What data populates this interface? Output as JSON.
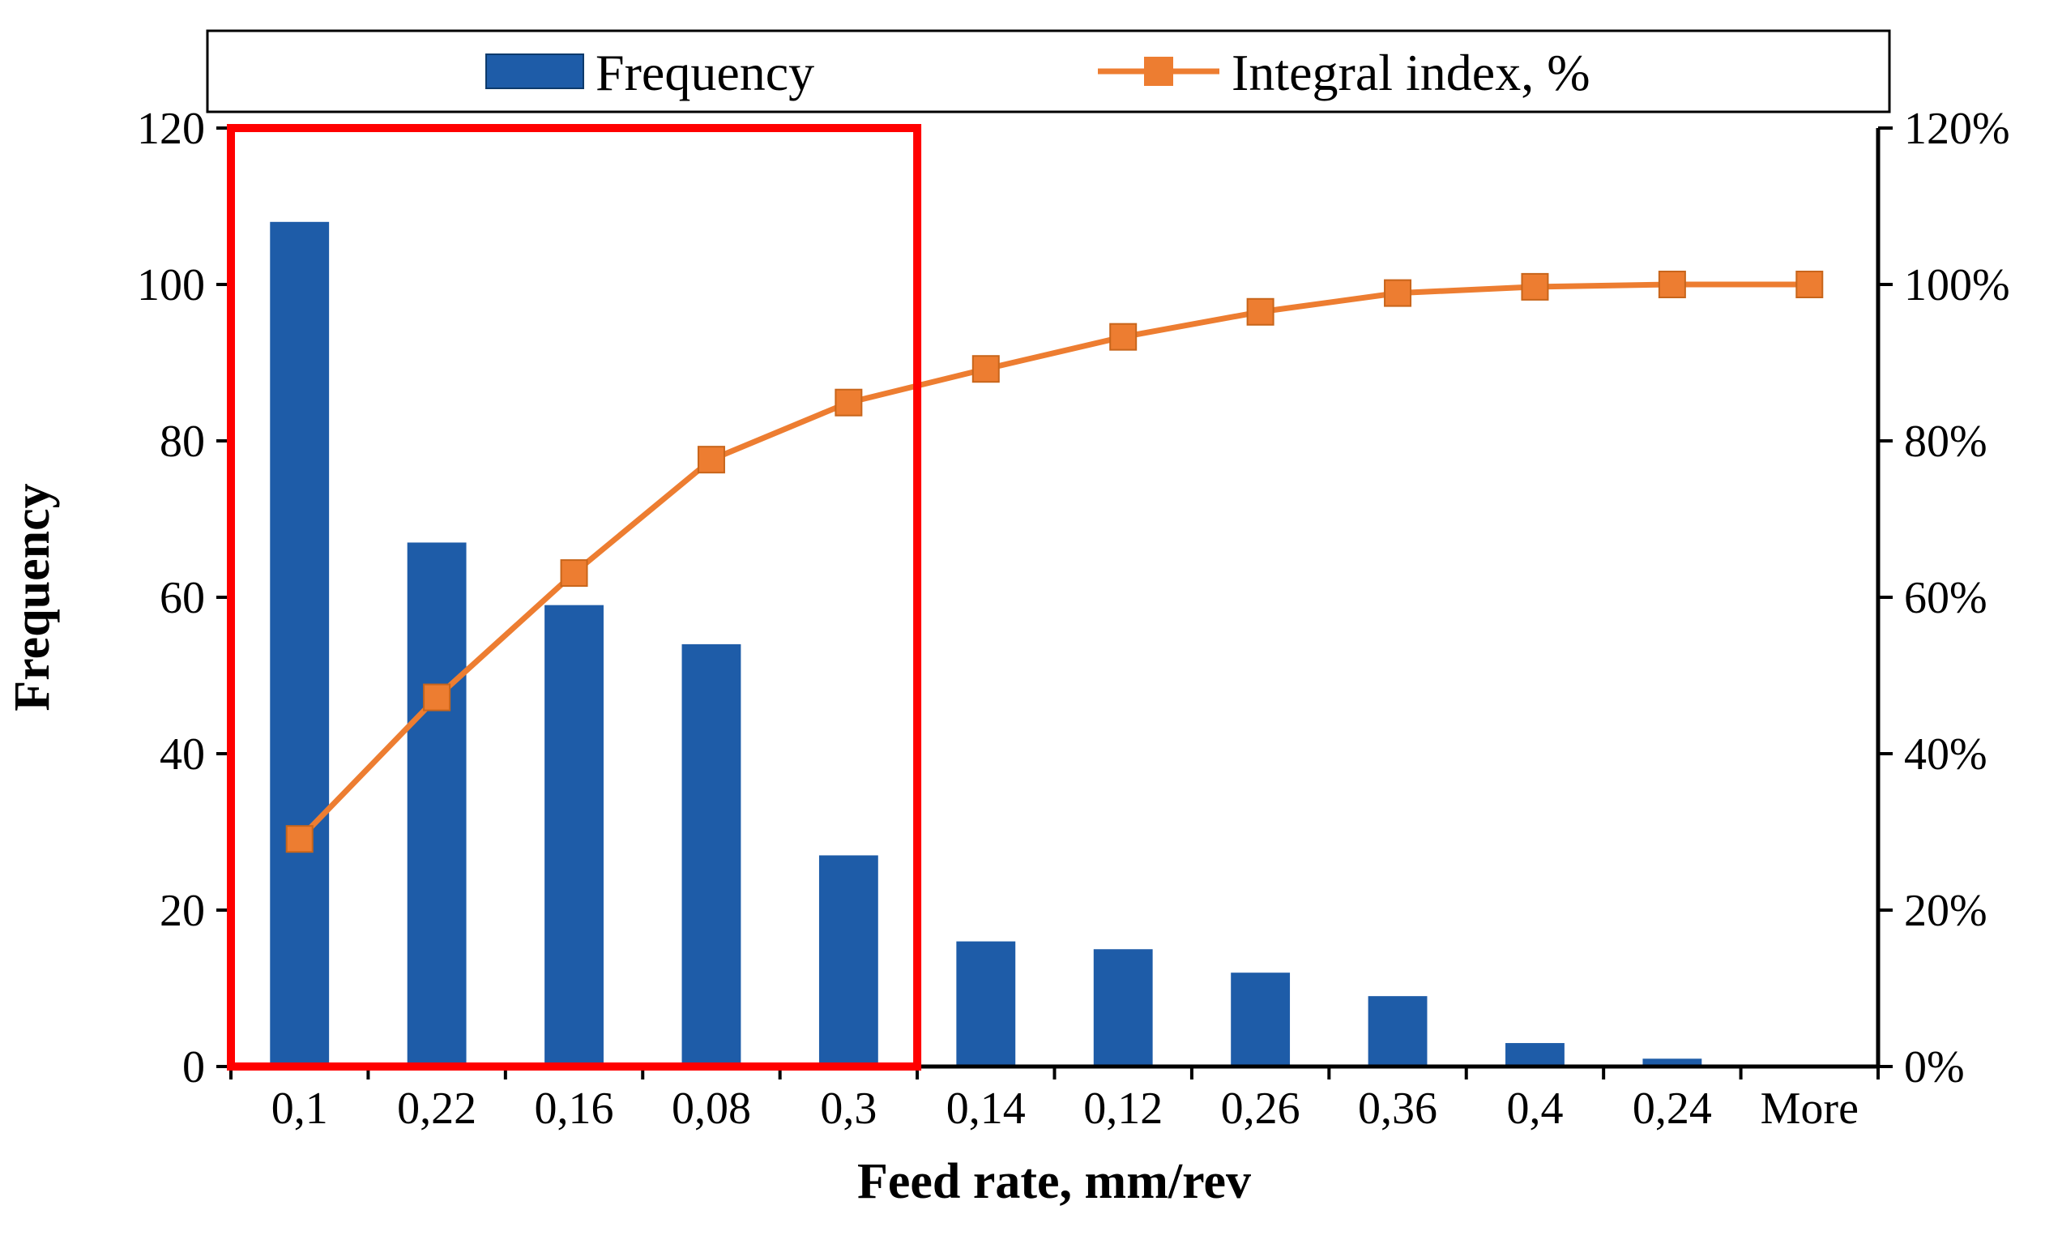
{
  "chart_data": {
    "type": "bar",
    "subtype": "pareto",
    "categories": [
      "0,1",
      "0,22",
      "0,16",
      "0,08",
      "0,3",
      "0,14",
      "0,12",
      "0,26",
      "0,36",
      "0,4",
      "0,24",
      "More"
    ],
    "series": [
      {
        "name": "Frequency",
        "type": "bar",
        "axis": "left",
        "color": "#1E5CA8",
        "values": [
          108,
          67,
          59,
          54,
          27,
          16,
          15,
          12,
          9,
          3,
          1,
          0
        ]
      },
      {
        "name": "Integral index, %",
        "type": "line-square-marker",
        "axis": "right",
        "color": "#ED7D31",
        "values": [
          29.1,
          47.2,
          63.1,
          77.6,
          84.9,
          89.2,
          93.3,
          96.5,
          98.9,
          99.7,
          100,
          100
        ]
      }
    ],
    "left_axis": {
      "title": "Frequency",
      "min": 0,
      "max": 120,
      "step": 20,
      "tick_labels": [
        "0",
        "20",
        "40",
        "60",
        "80",
        "100",
        "120"
      ]
    },
    "right_axis": {
      "min": 0,
      "max": 120,
      "step": 20,
      "tick_labels": [
        "0%",
        "20%",
        "40%",
        "60%",
        "80%",
        "100%",
        "120%"
      ]
    },
    "x_axis": {
      "title": "Feed rate, mm/rev"
    },
    "legend": {
      "position": "top",
      "items": [
        {
          "label": "Frequency",
          "marker": "rect",
          "color": "#1E5CA8"
        },
        {
          "label": "Integral index, %",
          "marker": "line-square",
          "color": "#ED7D31"
        }
      ]
    },
    "annotation": {
      "type": "highlight-rect",
      "color": "#FF0000",
      "covers_categories": [
        "0,1",
        "0,22",
        "0,16",
        "0,08",
        "0,3"
      ]
    },
    "grid": "off",
    "background": "#FFFFFF"
  }
}
